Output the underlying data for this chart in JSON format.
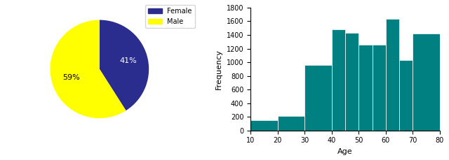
{
  "pie_labels": [
    "Female",
    "Male"
  ],
  "pie_values": [
    41,
    59
  ],
  "pie_colors": [
    "#2b2d8e",
    "#ffff00"
  ],
  "pie_autopct_labels": [
    "41%",
    "59%"
  ],
  "legend_labels": [
    "Female",
    "Male"
  ],
  "bar_left_edges": [
    10,
    20,
    30,
    40,
    45,
    50,
    55,
    60,
    65,
    70
  ],
  "bar_widths": [
    10,
    10,
    10,
    5,
    5,
    5,
    5,
    5,
    5,
    10
  ],
  "bar_heights": [
    155,
    210,
    960,
    1480,
    1430,
    1260,
    1260,
    1640,
    1030,
    1420
  ],
  "bar_color": "#008080",
  "hist_xlabel": "Age",
  "hist_ylabel": "Frequency",
  "hist_xlim": [
    10,
    80
  ],
  "hist_ylim": [
    0,
    1800
  ],
  "hist_yticks": [
    0,
    200,
    400,
    600,
    800,
    1000,
    1200,
    1400,
    1600,
    1800
  ],
  "hist_xticks": [
    10,
    20,
    30,
    40,
    50,
    60,
    70,
    80
  ]
}
